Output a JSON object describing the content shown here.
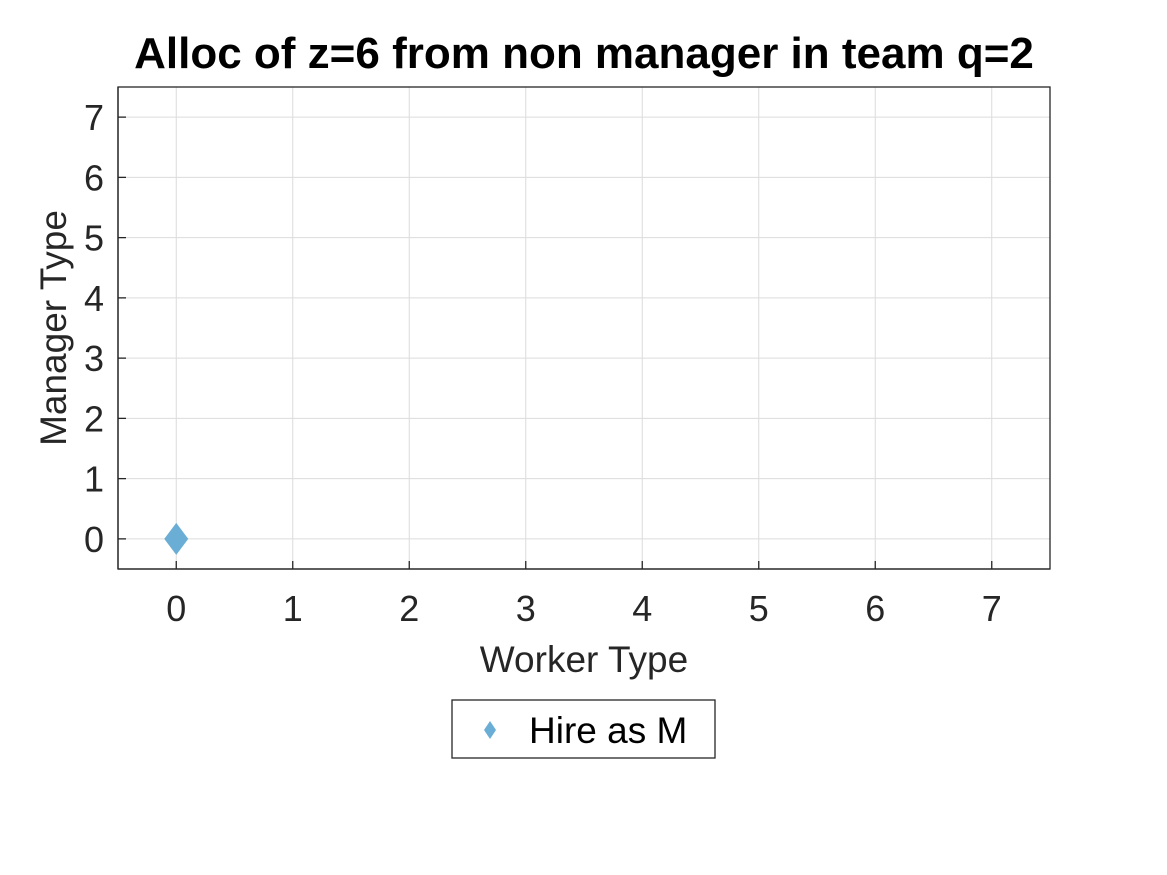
{
  "chart_data": {
    "type": "scatter",
    "title": "Alloc of z=6 from non manager in team q=2",
    "xlabel": "Worker Type",
    "ylabel": "Manager Type",
    "xlim": [
      -0.5,
      7.5
    ],
    "ylim": [
      -0.5,
      7.5
    ],
    "xticks": [
      "0",
      "1",
      "2",
      "3",
      "4",
      "5",
      "6",
      "7"
    ],
    "yticks": [
      "0",
      "1",
      "2",
      "3",
      "4",
      "5",
      "6",
      "7"
    ],
    "grid": true,
    "legend_position": "below",
    "series": [
      {
        "name": "Hire as M",
        "marker": "diamond",
        "color": "#6aaed6",
        "points": [
          {
            "x": 0,
            "y": 0
          }
        ]
      }
    ]
  }
}
